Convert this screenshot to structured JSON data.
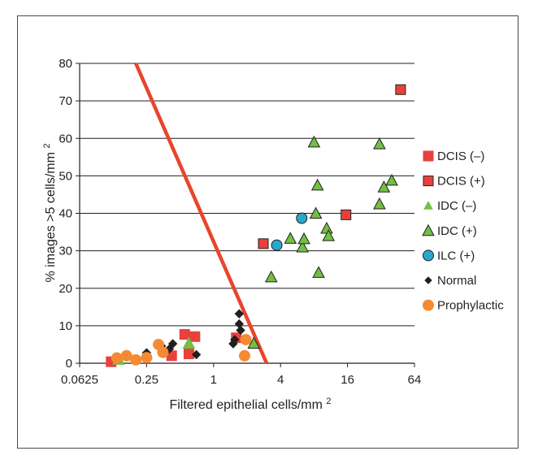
{
  "chart_data": {
    "type": "scatter",
    "title": "",
    "xlabel": "Filtered epithelial cells/mm2",
    "ylabel": "% images >5 cells/mm2",
    "x_scale": "log2",
    "xlim": [
      0.0625,
      64
    ],
    "ylim": [
      0,
      80
    ],
    "x_ticks": [
      0.0625,
      0.25,
      1,
      4,
      16,
      64
    ],
    "x_tick_labels": [
      "0.0625",
      "0.25",
      "1",
      "4",
      "16",
      "64"
    ],
    "y_ticks": [
      0,
      10,
      20,
      30,
      40,
      50,
      60,
      70,
      80
    ],
    "y_tick_labels": [
      "0",
      "10",
      "20",
      "30",
      "40",
      "50",
      "60",
      "70",
      "80"
    ],
    "grid": "horizontal",
    "legend_position": "right",
    "series": [
      {
        "name": "DCIS (–)",
        "marker": "square",
        "color": "#e8413c",
        "edge": "#e8413c",
        "points": [
          [
            0.12,
            0.4
          ],
          [
            0.42,
            2.0
          ],
          [
            0.55,
            7.7
          ],
          [
            0.6,
            2.5
          ],
          [
            0.68,
            7.1
          ],
          [
            1.6,
            6.8
          ]
        ]
      },
      {
        "name": "DCIS (+)",
        "marker": "square",
        "color": "#e8413c",
        "edge": "#231f20",
        "points": [
          [
            2.8,
            31.9
          ],
          [
            15.5,
            39.6
          ],
          [
            48,
            73.0
          ]
        ]
      },
      {
        "name": "IDC (–)",
        "marker": "triangle",
        "color": "#72bf44",
        "edge": "#72bf44",
        "points": [
          [
            0.14,
            1.0
          ],
          [
            0.6,
            5.3
          ]
        ]
      },
      {
        "name": "IDC (+)",
        "marker": "triangle",
        "color": "#72bf44",
        "edge": "#231f20",
        "points": [
          [
            2.3,
            5.3
          ],
          [
            3.3,
            23.0
          ],
          [
            4.9,
            33.3
          ],
          [
            6.3,
            31.0
          ],
          [
            6.5,
            33.2
          ],
          [
            8.0,
            59.0
          ],
          [
            8.3,
            40.0
          ],
          [
            8.6,
            47.5
          ],
          [
            8.8,
            24.2
          ],
          [
            10.4,
            36.0
          ],
          [
            10.8,
            34.0
          ],
          [
            31,
            58.5
          ],
          [
            31,
            42.5
          ],
          [
            34,
            47.0
          ],
          [
            40,
            48.8
          ]
        ]
      },
      {
        "name": "ILC (+)",
        "marker": "circle",
        "color": "#27a8cc",
        "edge": "#231f20",
        "points": [
          [
            3.7,
            31.5
          ],
          [
            6.2,
            38.7
          ]
        ]
      },
      {
        "name": "Normal",
        "marker": "diamond",
        "color": "#231f20",
        "edge": "#231f20",
        "points": [
          [
            0.25,
            2.8
          ],
          [
            0.34,
            4.6
          ],
          [
            0.4,
            3.8
          ],
          [
            0.43,
            5.2
          ],
          [
            0.7,
            2.3
          ],
          [
            1.5,
            5.2
          ],
          [
            1.55,
            6.3
          ],
          [
            1.7,
            13.2
          ],
          [
            1.7,
            10.5
          ],
          [
            1.75,
            8.8
          ]
        ]
      },
      {
        "name": "Prophylactic",
        "marker": "circle",
        "color": "#f58a33",
        "edge": "#f58a33",
        "points": [
          [
            0.135,
            1.4
          ],
          [
            0.165,
            2.0
          ],
          [
            0.2,
            0.9
          ],
          [
            0.25,
            1.5
          ],
          [
            0.32,
            5.0
          ],
          [
            0.35,
            2.9
          ],
          [
            1.95,
            6.3
          ],
          [
            1.9,
            2.0
          ]
        ]
      }
    ],
    "annotations": [
      {
        "type": "line",
        "color": "#e8452c",
        "from": [
          0.2,
          80
        ],
        "to": [
          3.0,
          0
        ]
      }
    ]
  }
}
